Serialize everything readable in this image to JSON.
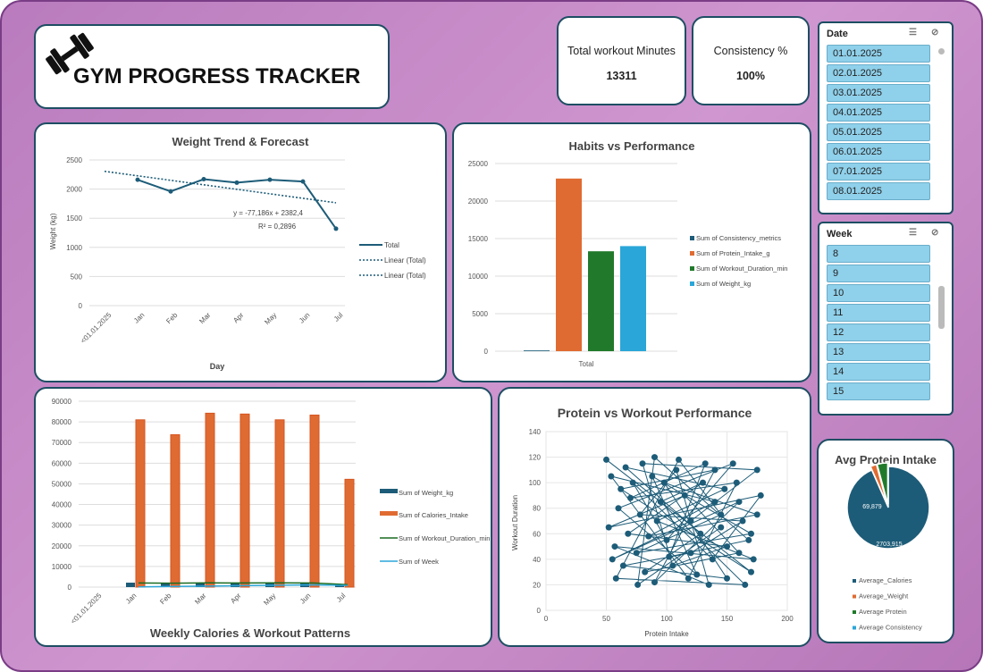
{
  "header": {
    "title": "GYM PROGRESS TRACKER",
    "icon": "dumbbell-icon"
  },
  "kpis": [
    {
      "label": "Total workout Minutes",
      "value": "13311"
    },
    {
      "label": "Consistency %",
      "value": "100%"
    }
  ],
  "date_slicer": {
    "title": "Date",
    "items": [
      "01.01.2025",
      "02.01.2025",
      "03.01.2025",
      "04.01.2025",
      "05.01.2025",
      "06.01.2025",
      "07.01.2025",
      "08.01.2025"
    ]
  },
  "week_slicer": {
    "title": "Week",
    "items": [
      "8",
      "9",
      "10",
      "11",
      "12",
      "13",
      "14",
      "15"
    ]
  },
  "chart_data": [
    {
      "type": "line",
      "title": "Weight Trend & Forecast",
      "xlabel": "Day",
      "ylabel": "Weight (kg)",
      "categories": [
        "<01.01.2025",
        "Jan",
        "Feb",
        "Mar",
        "Apr",
        "May",
        "Jun",
        "Jul"
      ],
      "ylim": [
        0,
        2500
      ],
      "yticks": [
        0,
        500,
        1000,
        1500,
        2000,
        2500
      ],
      "series": [
        {
          "name": "Total",
          "values": [
            null,
            2160,
            1960,
            2170,
            2110,
            2160,
            2130,
            1320
          ],
          "color": "#1d5c78"
        }
      ],
      "trendline": {
        "equation": "y = -77,186x + 2382,4",
        "r2": "R² = 0,2896",
        "start": 2305,
        "end": 1765
      },
      "legend": [
        "Total",
        "Linear (Total)",
        "Linear (Total)"
      ],
      "legend_position": "right",
      "grid": true
    },
    {
      "type": "bar",
      "title": "Habits vs Performance",
      "categories": [
        "Total"
      ],
      "ylim": [
        0,
        25000
      ],
      "yticks": [
        0,
        5000,
        10000,
        15000,
        20000,
        25000
      ],
      "series": [
        {
          "name": "Sum of Consistency_metrics",
          "value": 100,
          "color": "#1d5c78"
        },
        {
          "name": "Sum of Protein_Intake_g",
          "value": 23000,
          "color": "#e06b32"
        },
        {
          "name": "Sum of Workout_Duration_min",
          "value": 13311,
          "color": "#217a2b"
        },
        {
          "name": "Sum of Weight_kg",
          "value": 14000,
          "color": "#2aa6d8"
        }
      ],
      "legend_position": "right",
      "grid": true
    },
    {
      "type": "bar",
      "title": "Weekly Calories & Workout Patterns",
      "categories": [
        "<01.01.2025",
        "Jan",
        "Feb",
        "Mar",
        "Apr",
        "May",
        "Jun",
        "Jul"
      ],
      "ylim": [
        0,
        90000
      ],
      "yticks": [
        0,
        10000,
        20000,
        30000,
        40000,
        50000,
        60000,
        70000,
        80000,
        90000
      ],
      "series": [
        {
          "name": "Sum of Weight_kg",
          "kind": "bar",
          "values": [
            null,
            2160,
            1960,
            2170,
            2110,
            2160,
            2130,
            1320
          ],
          "color": "#1d5c78"
        },
        {
          "name": "Sum of Calories_Intake",
          "kind": "bar",
          "values": [
            null,
            81000,
            73800,
            84200,
            83800,
            81000,
            83300,
            52200
          ],
          "color": "#e06b32"
        },
        {
          "name": "Sum of Workout_Duration_min",
          "kind": "line",
          "values": [
            null,
            2000,
            1900,
            2050,
            2000,
            2050,
            2000,
            1200
          ],
          "color": "#1a6b22"
        },
        {
          "name": "Sum of Week",
          "kind": "line",
          "values": [
            null,
            100,
            300,
            500,
            700,
            900,
            1100,
            800
          ],
          "color": "#2aa6d8"
        }
      ],
      "legend_position": "right",
      "grid": true
    },
    {
      "type": "scatter",
      "title": "Protein vs Workout Performance",
      "xlabel": "Protein Intake",
      "ylabel": "Workout Duration",
      "xlim": [
        0,
        200
      ],
      "ylim": [
        0,
        140
      ],
      "xticks": [
        0,
        50,
        100,
        150,
        200
      ],
      "yticks": [
        0,
        20,
        40,
        60,
        80,
        100,
        120,
        140
      ],
      "color": "#1d5c78",
      "points": [
        [
          50,
          118
        ],
        [
          170,
          30
        ],
        [
          62,
          95
        ],
        [
          140,
          110
        ],
        [
          90,
          22
        ],
        [
          160,
          85
        ],
        [
          55,
          40
        ],
        [
          120,
          70
        ],
        [
          175,
          110
        ],
        [
          80,
          115
        ],
        [
          105,
          35
        ],
        [
          150,
          50
        ],
        [
          68,
          60
        ],
        [
          130,
          100
        ],
        [
          95,
          85
        ],
        [
          165,
          20
        ],
        [
          58,
          25
        ],
        [
          110,
          118
        ],
        [
          145,
          75
        ],
        [
          75,
          45
        ],
        [
          170,
          60
        ],
        [
          88,
          105
        ],
        [
          125,
          28
        ],
        [
          60,
          80
        ],
        [
          155,
          115
        ],
        [
          100,
          55
        ],
        [
          72,
          100
        ],
        [
          138,
          40
        ],
        [
          178,
          90
        ],
        [
          52,
          65
        ],
        [
          115,
          90
        ],
        [
          160,
          45
        ],
        [
          82,
          30
        ],
        [
          128,
          60
        ],
        [
          66,
          112
        ],
        [
          148,
          95
        ],
        [
          92,
          70
        ],
        [
          172,
          40
        ],
        [
          57,
          50
        ],
        [
          135,
          20
        ],
        [
          108,
          110
        ],
        [
          78,
          75
        ],
        [
          163,
          70
        ],
        [
          120,
          45
        ],
        [
          64,
          35
        ],
        [
          150,
          25
        ],
        [
          98,
          100
        ],
        [
          175,
          75
        ],
        [
          85,
          58
        ],
        [
          140,
          85
        ],
        [
          54,
          105
        ],
        [
          118,
          25
        ],
        [
          158,
          100
        ],
        [
          70,
          88
        ],
        [
          132,
          115
        ],
        [
          102,
          42
        ],
        [
          168,
          55
        ],
        [
          90,
          120
        ],
        [
          76,
          20
        ],
        [
          145,
          65
        ]
      ]
    },
    {
      "type": "pie",
      "title": "Avg Protein Intake",
      "slices": [
        {
          "name": "Average_Calories",
          "value": 2703.915,
          "label": "2703,915",
          "color": "#1d5c78"
        },
        {
          "name": "Average_Weight",
          "value": 69.879,
          "label": "69,879",
          "color": "#e06b32"
        },
        {
          "name": "Average Protein",
          "value": 120,
          "color": "#217a2b"
        },
        {
          "name": "Average Consistency",
          "value": 1,
          "color": "#2aa6d8"
        }
      ],
      "legend_position": "bottom"
    }
  ]
}
